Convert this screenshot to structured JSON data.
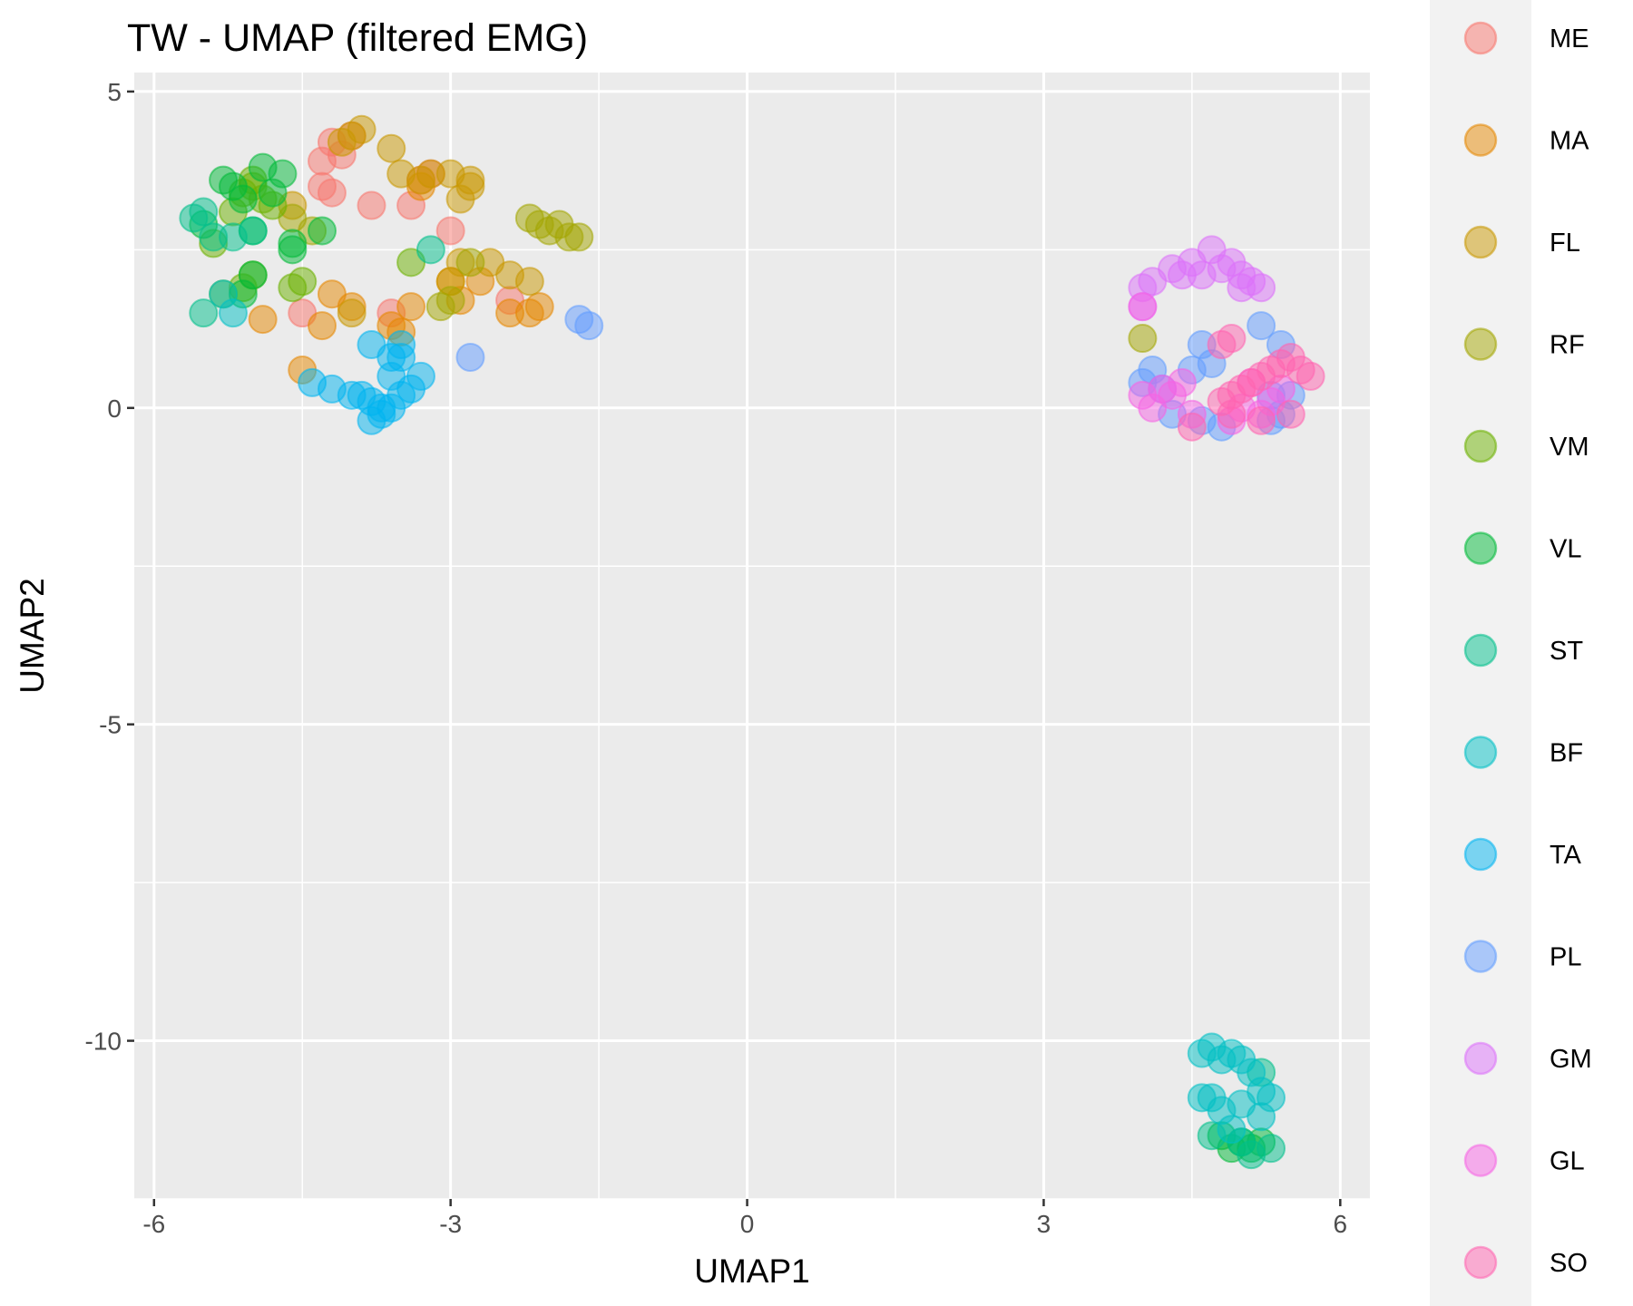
{
  "chart_data": {
    "type": "scatter",
    "title": "TW - UMAP (filtered EMG)",
    "xlabel": "UMAP1",
    "ylabel": "UMAP2",
    "xlim": [
      -6.2,
      6.3
    ],
    "ylim": [
      -12.5,
      5.3
    ],
    "xticks": [
      {
        "value": -6,
        "label": "-6"
      },
      {
        "value": -3,
        "label": "-3"
      },
      {
        "value": 0,
        "label": "0"
      },
      {
        "value": 3,
        "label": "3"
      },
      {
        "value": 6,
        "label": "6"
      }
    ],
    "yticks": [
      {
        "value": 5,
        "label": "5"
      },
      {
        "value": 0,
        "label": "0"
      },
      {
        "value": -5,
        "label": "-5"
      },
      {
        "value": -10,
        "label": "-10"
      }
    ],
    "grid": true,
    "legend_position": "right",
    "series": [
      {
        "name": "ME",
        "color": "#F8766D",
        "points": [
          [
            -4.3,
            3.9
          ],
          [
            -4.2,
            4.2
          ],
          [
            -4.1,
            4.0
          ],
          [
            -4.0,
            4.3
          ],
          [
            -4.2,
            3.4
          ],
          [
            -3.8,
            3.2
          ],
          [
            -3.4,
            3.2
          ],
          [
            -3.3,
            3.6
          ],
          [
            -3.0,
            2.8
          ],
          [
            -4.5,
            1.5
          ],
          [
            -3.6,
            1.5
          ],
          [
            -2.4,
            1.7
          ],
          [
            -4.3,
            3.5
          ],
          [
            -3.2,
            3.7
          ]
        ]
      },
      {
        "name": "MA",
        "color": "#E58700",
        "points": [
          [
            -4.5,
            0.6
          ],
          [
            -4.3,
            1.3
          ],
          [
            -4.2,
            1.8
          ],
          [
            -4.0,
            1.6
          ],
          [
            -3.6,
            1.3
          ],
          [
            -3.5,
            1.2
          ],
          [
            -3.4,
            1.6
          ],
          [
            -3.0,
            2.0
          ],
          [
            -2.9,
            1.7
          ],
          [
            -2.7,
            2.0
          ],
          [
            -2.4,
            1.5
          ],
          [
            -2.2,
            1.5
          ],
          [
            -2.1,
            1.6
          ],
          [
            -4.9,
            1.4
          ],
          [
            -3.3,
            3.5
          ]
        ]
      },
      {
        "name": "FL",
        "color": "#C99800",
        "points": [
          [
            -4.1,
            4.2
          ],
          [
            -4.0,
            4.3
          ],
          [
            -3.9,
            4.4
          ],
          [
            -3.6,
            4.1
          ],
          [
            -3.5,
            3.7
          ],
          [
            -3.3,
            3.6
          ],
          [
            -3.2,
            3.7
          ],
          [
            -3.0,
            3.7
          ],
          [
            -2.9,
            3.3
          ],
          [
            -2.8,
            3.5
          ],
          [
            -2.9,
            2.3
          ],
          [
            -2.6,
            2.3
          ],
          [
            -2.4,
            2.1
          ],
          [
            -2.2,
            2.0
          ],
          [
            -4.6,
            3.2
          ],
          [
            -4.0,
            1.5
          ],
          [
            -3.0,
            2.0
          ],
          [
            -2.8,
            3.6
          ]
        ]
      },
      {
        "name": "RF",
        "color": "#A3A500",
        "points": [
          [
            -2.2,
            3.0
          ],
          [
            -2.1,
            2.9
          ],
          [
            -2.0,
            2.8
          ],
          [
            -1.9,
            2.9
          ],
          [
            -1.8,
            2.7
          ],
          [
            -1.7,
            2.7
          ],
          [
            -3.1,
            1.6
          ],
          [
            -3.0,
            1.7
          ],
          [
            -2.8,
            2.3
          ],
          [
            -4.4,
            2.8
          ],
          [
            -4.6,
            3.0
          ],
          [
            4.0,
            1.1
          ]
        ]
      },
      {
        "name": "VM",
        "color": "#6BB100",
        "points": [
          [
            -5.1,
            3.4
          ],
          [
            -5.0,
            3.5
          ],
          [
            -4.9,
            3.3
          ],
          [
            -4.8,
            3.2
          ],
          [
            -5.2,
            3.1
          ],
          [
            -5.3,
            1.8
          ],
          [
            -5.1,
            1.9
          ],
          [
            -5.0,
            2.1
          ],
          [
            -4.6,
            1.9
          ],
          [
            -4.5,
            2.0
          ],
          [
            -3.4,
            2.3
          ],
          [
            -5.4,
            2.6
          ],
          [
            -5.0,
            3.6
          ]
        ]
      },
      {
        "name": "VL",
        "color": "#00BA38",
        "points": [
          [
            -5.3,
            3.6
          ],
          [
            -5.2,
            3.5
          ],
          [
            -5.1,
            3.3
          ],
          [
            -4.9,
            3.8
          ],
          [
            -4.7,
            3.7
          ],
          [
            -4.8,
            3.4
          ],
          [
            -4.6,
            2.6
          ],
          [
            -4.3,
            2.8
          ],
          [
            -5.0,
            2.1
          ],
          [
            -5.1,
            1.8
          ],
          [
            -5.5,
            2.9
          ],
          [
            -5.0,
            2.8
          ],
          [
            -4.6,
            2.5
          ],
          [
            4.8,
            -11.5
          ],
          [
            4.9,
            -11.7
          ],
          [
            5.0,
            -11.6
          ],
          [
            5.1,
            -11.7
          ],
          [
            5.2,
            -11.6
          ]
        ]
      },
      {
        "name": "ST",
        "color": "#00C08B",
        "points": [
          [
            -5.6,
            3.0
          ],
          [
            -5.5,
            3.1
          ],
          [
            -5.4,
            2.7
          ],
          [
            -5.2,
            2.7
          ],
          [
            -5.0,
            2.8
          ],
          [
            -3.2,
            2.5
          ],
          [
            -5.5,
            1.5
          ],
          [
            4.7,
            -11.5
          ],
          [
            5.0,
            -11.6
          ],
          [
            5.1,
            -11.8
          ],
          [
            5.3,
            -11.7
          ],
          [
            5.2,
            -10.5
          ]
        ]
      },
      {
        "name": "BF",
        "color": "#00BFC4",
        "points": [
          [
            -5.2,
            1.5
          ],
          [
            -5.3,
            1.8
          ],
          [
            4.6,
            -10.2
          ],
          [
            4.7,
            -10.1
          ],
          [
            4.8,
            -10.3
          ],
          [
            4.9,
            -10.2
          ],
          [
            5.0,
            -10.3
          ],
          [
            5.1,
            -10.5
          ],
          [
            4.6,
            -10.9
          ],
          [
            4.7,
            -10.9
          ],
          [
            4.8,
            -11.1
          ],
          [
            5.0,
            -11.0
          ],
          [
            5.2,
            -10.8
          ],
          [
            5.3,
            -10.9
          ],
          [
            5.2,
            -11.2
          ],
          [
            4.9,
            -11.4
          ]
        ]
      },
      {
        "name": "TA",
        "color": "#00B4F0",
        "points": [
          [
            -4.4,
            0.4
          ],
          [
            -4.2,
            0.3
          ],
          [
            -4.0,
            0.2
          ],
          [
            -3.9,
            0.2
          ],
          [
            -3.8,
            0.1
          ],
          [
            -3.7,
            0.0
          ],
          [
            -3.6,
            0.0
          ],
          [
            -3.5,
            0.2
          ],
          [
            -3.4,
            0.3
          ],
          [
            -3.6,
            0.5
          ],
          [
            -3.5,
            0.8
          ],
          [
            -3.6,
            0.8
          ],
          [
            -3.5,
            1.0
          ],
          [
            -3.8,
            1.0
          ],
          [
            -3.7,
            -0.1
          ],
          [
            -3.3,
            0.5
          ],
          [
            -3.8,
            -0.2
          ]
        ]
      },
      {
        "name": "PL",
        "color": "#619CFF",
        "points": [
          [
            -1.7,
            1.4
          ],
          [
            -1.6,
            1.3
          ],
          [
            -2.8,
            0.8
          ],
          [
            4.0,
            0.4
          ],
          [
            4.1,
            0.6
          ],
          [
            4.5,
            0.6
          ],
          [
            4.7,
            0.7
          ],
          [
            4.6,
            1.0
          ],
          [
            5.2,
            1.3
          ],
          [
            5.4,
            1.0
          ],
          [
            5.3,
            0.2
          ],
          [
            5.4,
            -0.1
          ],
          [
            5.3,
            -0.2
          ],
          [
            4.8,
            -0.3
          ],
          [
            4.6,
            -0.2
          ],
          [
            4.3,
            -0.1
          ],
          [
            5.5,
            0.2
          ],
          [
            4.2,
            0.3
          ]
        ]
      },
      {
        "name": "GM",
        "color": "#DC71FA",
        "points": [
          [
            4.0,
            1.9
          ],
          [
            4.1,
            2.0
          ],
          [
            4.3,
            2.2
          ],
          [
            4.5,
            2.3
          ],
          [
            4.6,
            2.1
          ],
          [
            4.7,
            2.5
          ],
          [
            4.8,
            2.2
          ],
          [
            4.9,
            2.3
          ],
          [
            5.0,
            2.1
          ],
          [
            5.1,
            2.0
          ],
          [
            5.2,
            1.9
          ],
          [
            4.0,
            1.6
          ],
          [
            4.4,
            2.1
          ],
          [
            5.0,
            1.9
          ]
        ]
      },
      {
        "name": "GL",
        "color": "#F564E3",
        "points": [
          [
            4.0,
            1.6
          ],
          [
            4.0,
            0.2
          ],
          [
            4.1,
            0.0
          ],
          [
            4.2,
            0.3
          ],
          [
            4.4,
            0.4
          ],
          [
            4.5,
            -0.1
          ],
          [
            5.0,
            0.0
          ],
          [
            5.2,
            -0.1
          ],
          [
            5.4,
            0.3
          ],
          [
            5.3,
            0.1
          ],
          [
            4.9,
            -0.2
          ],
          [
            5.1,
            0.4
          ],
          [
            4.3,
            0.2
          ]
        ]
      },
      {
        "name": "SO",
        "color": "#FF64B0",
        "points": [
          [
            4.8,
            0.1
          ],
          [
            4.9,
            0.2
          ],
          [
            5.0,
            0.3
          ],
          [
            5.1,
            0.4
          ],
          [
            5.2,
            0.5
          ],
          [
            5.3,
            0.6
          ],
          [
            5.4,
            0.7
          ],
          [
            5.5,
            0.8
          ],
          [
            5.6,
            0.6
          ],
          [
            5.7,
            0.5
          ],
          [
            5.5,
            -0.1
          ],
          [
            5.2,
            -0.2
          ],
          [
            4.9,
            -0.1
          ],
          [
            4.5,
            -0.3
          ],
          [
            4.9,
            1.1
          ],
          [
            4.8,
            1.0
          ]
        ]
      }
    ]
  }
}
